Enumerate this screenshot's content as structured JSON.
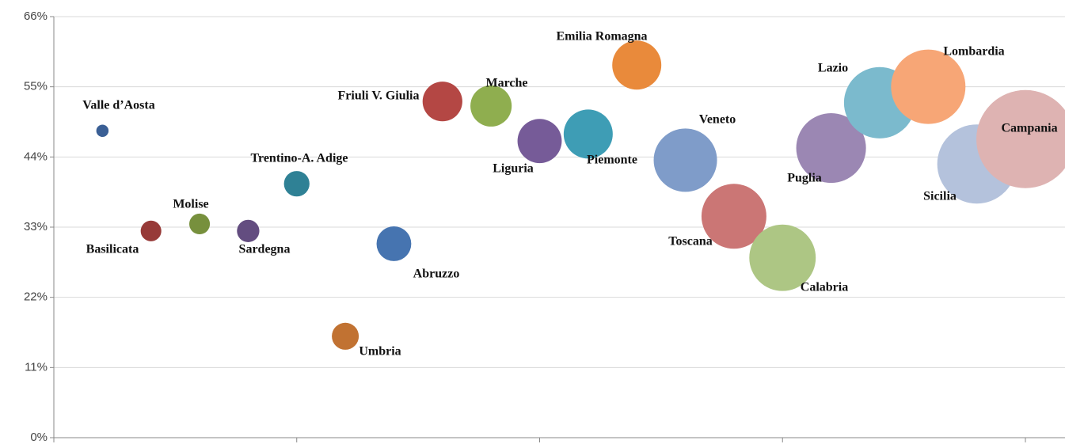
{
  "chart_data": {
    "type": "bubble",
    "xlim": [
      0,
      20
    ],
    "xticks": [
      0,
      5,
      10,
      15,
      20
    ],
    "ylim": [
      0,
      66
    ],
    "yticks": [
      {
        "value": 0,
        "label": "0%"
      },
      {
        "value": 11,
        "label": "11%"
      },
      {
        "value": 22,
        "label": "22%"
      },
      {
        "value": 33,
        "label": "33%"
      },
      {
        "value": 44,
        "label": "44%"
      },
      {
        "value": 55,
        "label": "55%"
      },
      {
        "value": 66,
        "label": "66%"
      }
    ],
    "grid": true,
    "points": [
      {
        "label": "Valle d’Aosta",
        "x": 1,
        "y": 48.1,
        "size": 6,
        "color": "#3a5f95"
      },
      {
        "label": "Basilicata",
        "x": 2,
        "y": 32.4,
        "size": 17,
        "color": "#973a38"
      },
      {
        "label": "Molise",
        "x": 3,
        "y": 33.5,
        "size": 17,
        "color": "#77903d"
      },
      {
        "label": "Sardegna",
        "x": 4,
        "y": 32.4,
        "size": 20,
        "color": "#634d80"
      },
      {
        "label": "Trentino-A. Adige",
        "x": 5,
        "y": 39.8,
        "size": 26,
        "color": "#2f8195"
      },
      {
        "label": "Umbria",
        "x": 6,
        "y": 15.9,
        "size": 29,
        "color": "#c17232"
      },
      {
        "label": "Abruzzo",
        "x": 7,
        "y": 30.4,
        "size": 48,
        "color": "#4674b0"
      },
      {
        "label": "Friuli V. Giulia",
        "x": 8,
        "y": 52.7,
        "size": 63,
        "color": "#b44744"
      },
      {
        "label": "Marche",
        "x": 9,
        "y": 52.0,
        "size": 68,
        "color": "#8fae4f"
      },
      {
        "label": "Liguria",
        "x": 10,
        "y": 46.5,
        "size": 78,
        "color": "#765b98"
      },
      {
        "label": "Piemonte",
        "x": 11,
        "y": 47.6,
        "size": 96,
        "color": "#3e9db5"
      },
      {
        "label": "Emilia Romagna",
        "x": 12,
        "y": 58.4,
        "size": 96,
        "color": "#e98a3b"
      },
      {
        "label": "Veneto",
        "x": 13,
        "y": 43.5,
        "size": 160,
        "color": "#7f9cc9"
      },
      {
        "label": "Toscana",
        "x": 14,
        "y": 34.7,
        "size": 168,
        "color": "#cb7675"
      },
      {
        "label": "Calabria",
        "x": 15,
        "y": 28.2,
        "size": 176,
        "color": "#adc684"
      },
      {
        "label": "Puglia",
        "x": 16,
        "y": 45.4,
        "size": 194,
        "color": "#9b87b3"
      },
      {
        "label": "Lazio",
        "x": 17,
        "y": 52.5,
        "size": 203,
        "color": "#7bbacd"
      },
      {
        "label": "Lombardia",
        "x": 18,
        "y": 55.0,
        "size": 221,
        "color": "#f7a676"
      },
      {
        "label": "Sicilia",
        "x": 19,
        "y": 42.9,
        "size": 250,
        "color": "#b4c2dc"
      },
      {
        "label": "Campania",
        "x": 20,
        "y": 46.8,
        "size": 384,
        "color": "#deb3b2"
      }
    ]
  }
}
